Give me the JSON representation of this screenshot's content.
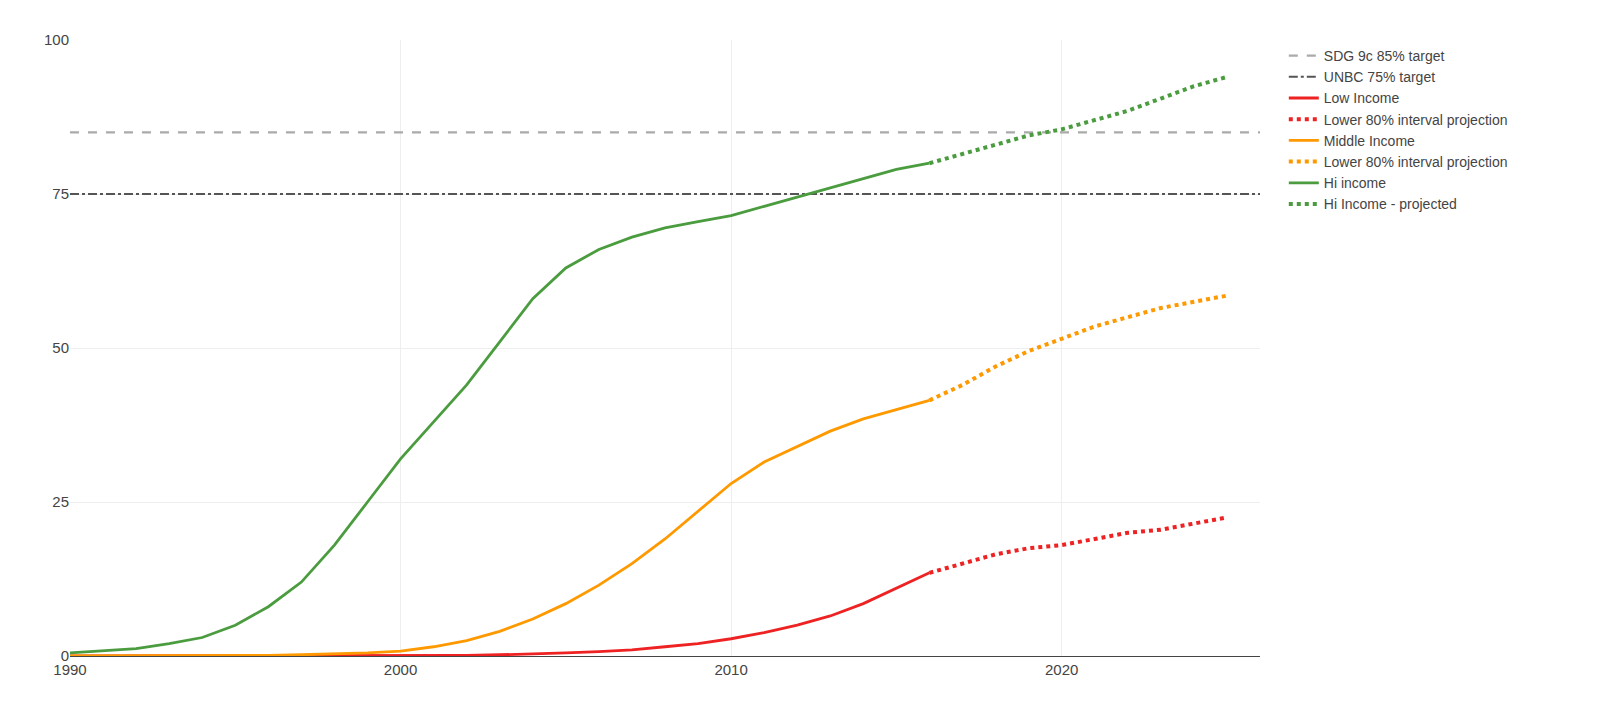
{
  "chart_data": {
    "type": "line",
    "xlim": [
      1990,
      2026
    ],
    "ylim": [
      0,
      100
    ],
    "xticks": [
      1990,
      2000,
      2010,
      2020
    ],
    "yticks": [
      0,
      25,
      50,
      75,
      100
    ],
    "grid": true,
    "legend": "right",
    "series": [
      {
        "name": "SDG 9c 85% target",
        "type": "hline",
        "color": "#aaaaaa",
        "line_style": "dash",
        "values": [
          85
        ]
      },
      {
        "name": "UNBC 75% target",
        "type": "hline",
        "color": "#555555",
        "line_style": "dashdot",
        "values": [
          75
        ]
      },
      {
        "name": "Low Income",
        "type": "line",
        "color": "#ee2222",
        "line_style": "solid",
        "x": [
          1990,
          1991,
          1992,
          1993,
          1994,
          1995,
          1996,
          1997,
          1998,
          1999,
          2000,
          2001,
          2002,
          2003,
          2004,
          2005,
          2006,
          2007,
          2008,
          2009,
          2010,
          2011,
          2012,
          2013,
          2014,
          2015,
          2016
        ],
        "values": [
          0.0,
          0.0,
          0.0,
          0.0,
          0.0,
          0.0,
          0.0,
          0.0,
          0.0,
          0.0,
          0.0,
          0.1,
          0.1,
          0.2,
          0.3,
          0.5,
          0.7,
          1.0,
          1.5,
          2.0,
          2.8,
          3.8,
          5.0,
          6.5,
          8.5,
          11.0,
          13.5
        ]
      },
      {
        "name": "Lower 80% interval projection",
        "type": "line",
        "color": "#ee2222",
        "line_style": "dot",
        "x": [
          2016,
          2017,
          2018,
          2019,
          2020,
          2021,
          2022,
          2023,
          2024,
          2025
        ],
        "values": [
          13.5,
          15.0,
          16.5,
          17.5,
          18.0,
          19.0,
          20.0,
          20.5,
          21.5,
          22.5
        ]
      },
      {
        "name": "Middle Income",
        "type": "line",
        "color": "#ff9900",
        "line_style": "solid",
        "x": [
          1990,
          1991,
          1992,
          1993,
          1994,
          1995,
          1996,
          1997,
          1998,
          1999,
          2000,
          2001,
          2002,
          2003,
          2004,
          2005,
          2006,
          2007,
          2008,
          2009,
          2010,
          2011,
          2012,
          2013,
          2014,
          2015,
          2016
        ],
        "values": [
          0.0,
          0.0,
          0.0,
          0.0,
          0.0,
          0.1,
          0.1,
          0.2,
          0.3,
          0.5,
          0.8,
          1.5,
          2.5,
          4.0,
          6.0,
          8.5,
          11.5,
          15.0,
          19.0,
          23.5,
          28.0,
          31.5,
          34.0,
          36.5,
          38.5,
          40.0,
          41.5
        ]
      },
      {
        "name": "Lower 80% interval projection",
        "type": "line",
        "color": "#ff9900",
        "line_style": "dot",
        "x": [
          2016,
          2017,
          2018,
          2019,
          2020,
          2021,
          2022,
          2023,
          2024,
          2025
        ],
        "values": [
          41.5,
          44.0,
          47.0,
          49.5,
          51.5,
          53.5,
          55.0,
          56.5,
          57.5,
          58.5
        ]
      },
      {
        "name": "Hi income",
        "type": "line",
        "color": "#4a9c3f",
        "line_style": "solid",
        "x": [
          1990,
          1991,
          1992,
          1993,
          1994,
          1995,
          1996,
          1997,
          1998,
          1999,
          2000,
          2001,
          2002,
          2003,
          2004,
          2005,
          2006,
          2007,
          2008,
          2009,
          2010,
          2011,
          2012,
          2013,
          2014,
          2015,
          2016
        ],
        "values": [
          0.5,
          0.8,
          1.2,
          2.0,
          3.0,
          5.0,
          8.0,
          12.0,
          18.0,
          25.0,
          32.0,
          38.0,
          44.0,
          51.0,
          58.0,
          63.0,
          66.0,
          68.0,
          69.5,
          70.5,
          71.5,
          73.0,
          74.5,
          76.0,
          77.5,
          79.0,
          80.0
        ]
      },
      {
        "name": "Hi Income - projected",
        "type": "line",
        "color": "#4a9c3f",
        "line_style": "dot",
        "x": [
          2016,
          2017,
          2018,
          2019,
          2020,
          2021,
          2022,
          2023,
          2024,
          2025
        ],
        "values": [
          80.0,
          81.5,
          83.0,
          84.5,
          85.5,
          87.0,
          88.5,
          90.5,
          92.5,
          94.0
        ]
      }
    ]
  }
}
